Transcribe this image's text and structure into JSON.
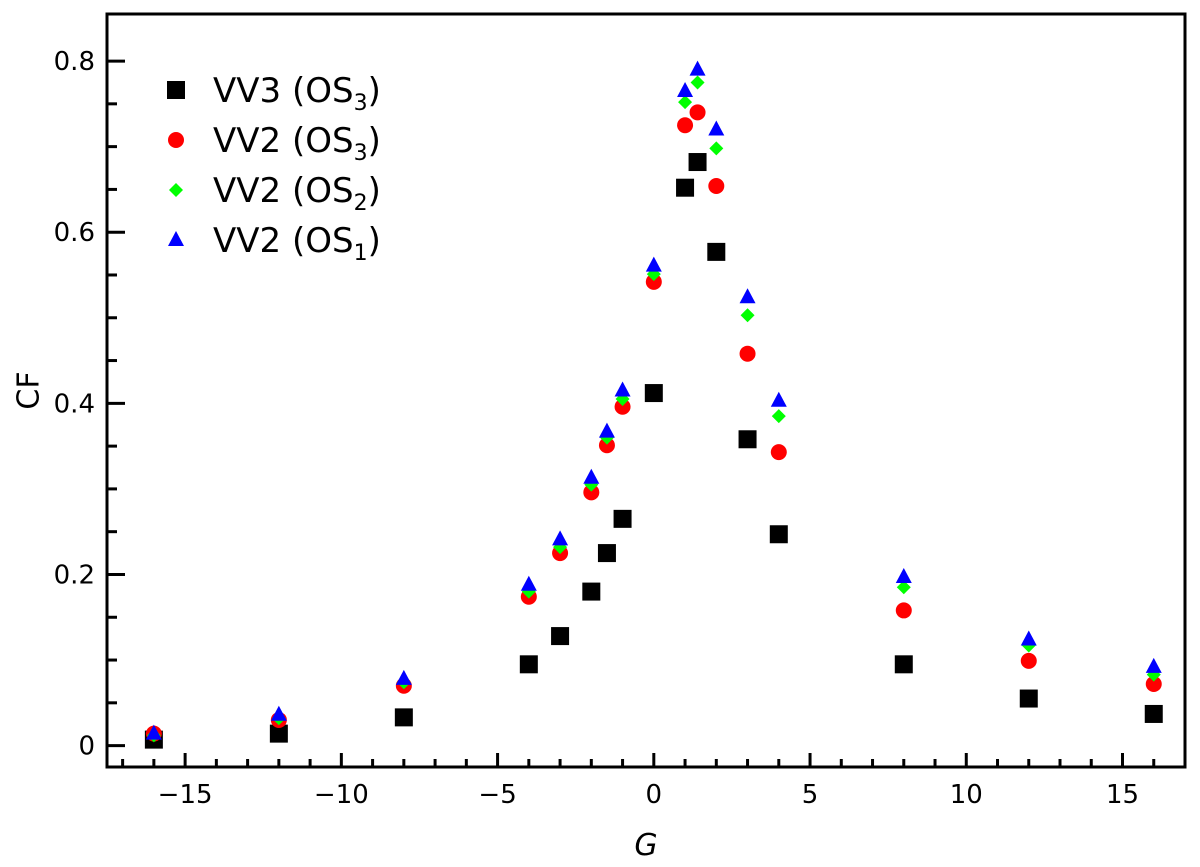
{
  "chart_data": {
    "type": "scatter",
    "title": "",
    "xlabel": "G",
    "ylabel": "CF",
    "xlim": [
      -17.5,
      17
    ],
    "ylim": [
      -0.025,
      0.855
    ],
    "xticks": [
      -15,
      -10,
      -5,
      0,
      5,
      10,
      15
    ],
    "xtick_labels": [
      "−15",
      "−10",
      "−5",
      "0",
      "5",
      "10",
      "15"
    ],
    "yticks": [
      0,
      0.2,
      0.4,
      0.6,
      0.8
    ],
    "ytick_labels": [
      "0",
      "0.2",
      "0.4",
      "0.6",
      "0.8"
    ],
    "legend_position": "top-left",
    "series": [
      {
        "name": "VV3 (OS3)",
        "label_main": "VV3 (OS",
        "label_sub": "3",
        "label_end": ")",
        "marker": "square",
        "color": "#000000",
        "x": [
          -16,
          -12,
          -8,
          -4,
          -3,
          -2,
          -1.5,
          -1,
          0,
          1,
          1.4,
          2,
          3,
          4,
          8,
          12,
          16
        ],
        "y": [
          0.007,
          0.014,
          0.033,
          0.095,
          0.128,
          0.18,
          0.225,
          0.265,
          0.412,
          0.652,
          0.682,
          0.577,
          0.358,
          0.247,
          0.095,
          0.055,
          0.037
        ]
      },
      {
        "name": "VV2 (OS3)",
        "label_main": "VV2 (OS",
        "label_sub": "3",
        "label_end": ")",
        "marker": "circle",
        "color": "#ff0000",
        "x": [
          -16,
          -12,
          -8,
          -4,
          -3,
          -2,
          -1.5,
          -1,
          0,
          1,
          1.4,
          2,
          3,
          4,
          8,
          12,
          16
        ],
        "y": [
          0.014,
          0.03,
          0.07,
          0.174,
          0.225,
          0.296,
          0.351,
          0.396,
          0.542,
          0.725,
          0.74,
          0.654,
          0.458,
          0.343,
          0.158,
          0.099,
          0.072
        ]
      },
      {
        "name": "VV2 (OS2)",
        "label_main": "VV2 (OS",
        "label_sub": "2",
        "label_end": ")",
        "marker": "diamond",
        "color": "#00ff00",
        "x": [
          -16,
          -12,
          -8,
          -4,
          -3,
          -2,
          -1.5,
          -1,
          0,
          1,
          1.4,
          2,
          3,
          4,
          8,
          12,
          16
        ],
        "y": [
          0.012,
          0.032,
          0.074,
          0.18,
          0.232,
          0.305,
          0.36,
          0.405,
          0.551,
          0.752,
          0.775,
          0.698,
          0.503,
          0.385,
          0.185,
          0.117,
          0.083
        ]
      },
      {
        "name": "VV2 (OS1)",
        "label_main": "VV2 (OS",
        "label_sub": "1",
        "label_end": ")",
        "marker": "triangle",
        "color": "#0000ff",
        "x": [
          -16,
          -12,
          -8,
          -4,
          -3,
          -2,
          -1.5,
          -1,
          0,
          1,
          1.4,
          2,
          3,
          4,
          8,
          12,
          16
        ],
        "y": [
          0.014,
          0.036,
          0.078,
          0.188,
          0.241,
          0.313,
          0.367,
          0.415,
          0.561,
          0.765,
          0.79,
          0.72,
          0.524,
          0.403,
          0.197,
          0.124,
          0.092
        ]
      }
    ]
  }
}
